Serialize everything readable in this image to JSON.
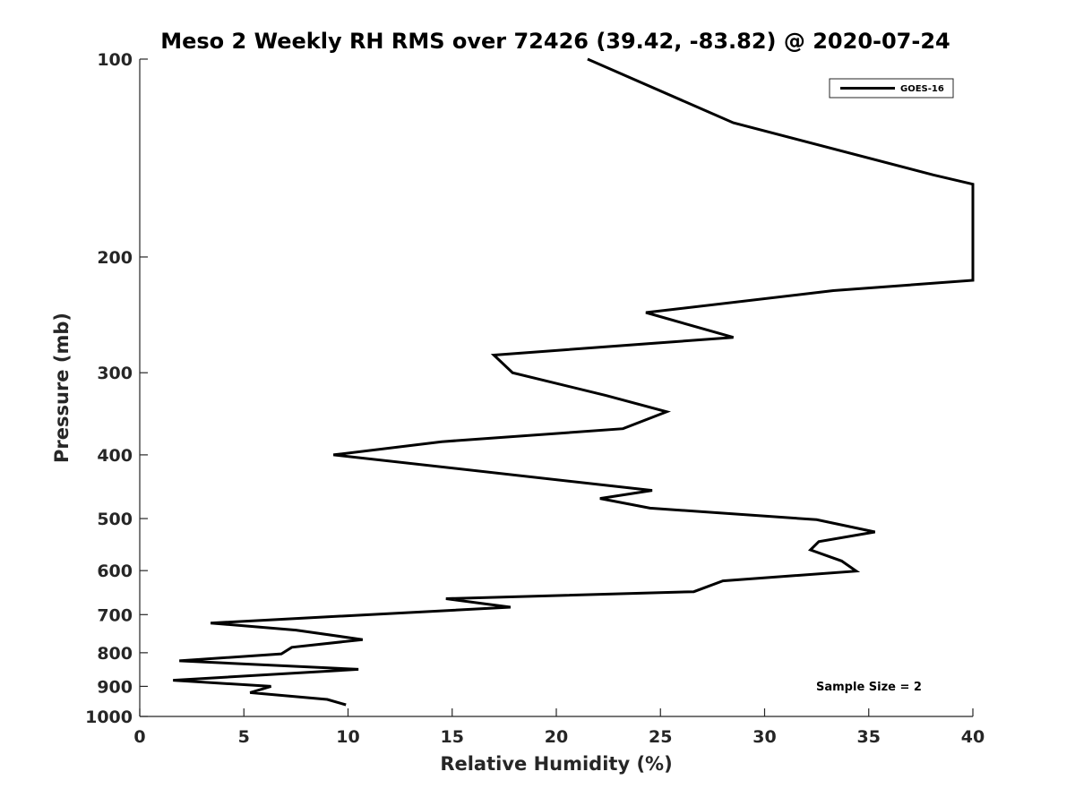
{
  "chart_data": {
    "type": "line",
    "title": "Meso 2 Weekly RH RMS over 72426 (39.42, -83.82) @ 2020-07-24",
    "xlabel": "Relative Humidity (%)",
    "ylabel": "Pressure (mb)",
    "xlim": [
      0,
      40
    ],
    "ylim": [
      100,
      1000
    ],
    "y_scale": "log",
    "y_reversed": true,
    "grid": false,
    "legend_position": "top-right",
    "x_ticks": [
      "0",
      "5",
      "10",
      "15",
      "20",
      "25",
      "30",
      "35",
      "40"
    ],
    "y_ticks": [
      "100",
      "200",
      "300",
      "400",
      "500",
      "600",
      "700",
      "800",
      "900",
      "1000"
    ],
    "annotation": "Sample Size = 2",
    "series": [
      {
        "name": "GOES-16",
        "color": "#000000",
        "points": [
          [
            21.5,
            100
          ],
          [
            28.5,
            125
          ],
          [
            38.1,
            150
          ],
          [
            40,
            155
          ],
          [
            40,
            217
          ],
          [
            33.3,
            225
          ],
          [
            24.3,
            243
          ],
          [
            28.5,
            265
          ],
          [
            17.0,
            282
          ],
          [
            17.9,
            300
          ],
          [
            22.4,
            325
          ],
          [
            25.3,
            344
          ],
          [
            23.2,
            365
          ],
          [
            14.5,
            382
          ],
          [
            9.3,
            400
          ],
          [
            24.6,
            453
          ],
          [
            22.1,
            466
          ],
          [
            24.5,
            482
          ],
          [
            32.5,
            502
          ],
          [
            35.3,
            524
          ],
          [
            32.6,
            542
          ],
          [
            32.2,
            558
          ],
          [
            33.7,
            580
          ],
          [
            34.4,
            601
          ],
          [
            28.0,
            622
          ],
          [
            26.6,
            646
          ],
          [
            14.7,
            662
          ],
          [
            17.8,
            682
          ],
          [
            3.4,
            721
          ],
          [
            7.5,
            739
          ],
          [
            10.7,
            764
          ],
          [
            7.3,
            785
          ],
          [
            6.8,
            803
          ],
          [
            1.9,
            823
          ],
          [
            10.5,
            848
          ],
          [
            1.6,
            881
          ],
          [
            6.3,
            900
          ],
          [
            5.3,
            920
          ],
          [
            9.0,
            942
          ],
          [
            9.9,
            960
          ]
        ]
      }
    ]
  }
}
